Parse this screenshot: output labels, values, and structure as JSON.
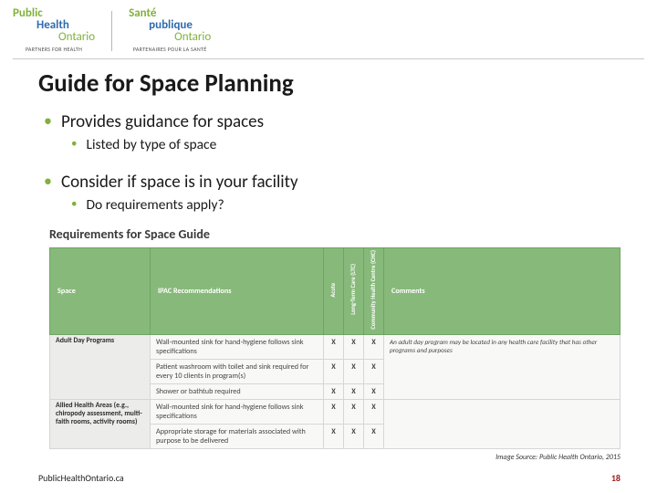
{
  "logo": {
    "en": {
      "l1": "Public",
      "l2": "Health",
      "l3": "Ontario",
      "tagline": "PARTNERS FOR HEALTH"
    },
    "fr": {
      "l1": "Santé",
      "l2": "publique",
      "l3": "Ontario",
      "tagline": "PARTENAIRES POUR LA SANTÉ"
    }
  },
  "title": "Guide for Space Planning",
  "bullets": {
    "b1a": "Provides guidance for spaces",
    "b2a": "Listed by type of space",
    "b1b": "Consider if space is in your facility",
    "b2b": "Do requirements apply?"
  },
  "table": {
    "heading": "Requirements for Space Guide",
    "columns": {
      "space": "Space",
      "reco": "IPAC Recommendations",
      "acute": "Acute",
      "ltc": "Long-Term Care (LTC)",
      "chc": "Community Health Centre (CHC)",
      "comments": "Comments"
    },
    "rows": [
      {
        "category": "Adult Day Programs",
        "items": [
          {
            "reco": "Wall-mounted sink for hand-hygiene follows sink specifications",
            "acute": "X",
            "ltc": "X",
            "chc": "X",
            "comment": "An adult day program may be located in any health care facility that has other programs and purposes"
          },
          {
            "reco": "Patient washroom with toilet and sink required for every 10 clients in program(s)",
            "acute": "X",
            "ltc": "X",
            "chc": "X",
            "comment": ""
          },
          {
            "reco": "Shower or bathtub required",
            "acute": "X",
            "ltc": "X",
            "chc": "X",
            "comment": ""
          }
        ]
      },
      {
        "category": "Allied Health Areas (e.g., chiropody assessment, multi-faith rooms, activity rooms)",
        "items": [
          {
            "reco": "Wall-mounted sink for hand-hygiene follows sink specifications",
            "acute": "X",
            "ltc": "X",
            "chc": "X",
            "comment": ""
          },
          {
            "reco": "Appropriate storage for materials associated with purpose to be delivered",
            "acute": "X",
            "ltc": "X",
            "chc": "X",
            "comment": ""
          }
        ]
      }
    ]
  },
  "source": "Image Source: Public Health Ontario, 2015",
  "footer": {
    "site": "PublicHealthOntario.ca",
    "page": "18"
  },
  "colors": {
    "accent_green": "#7fb23a",
    "header_green": "#87b97a",
    "blue": "#2d6bb0",
    "pagenum": "#a02020"
  }
}
